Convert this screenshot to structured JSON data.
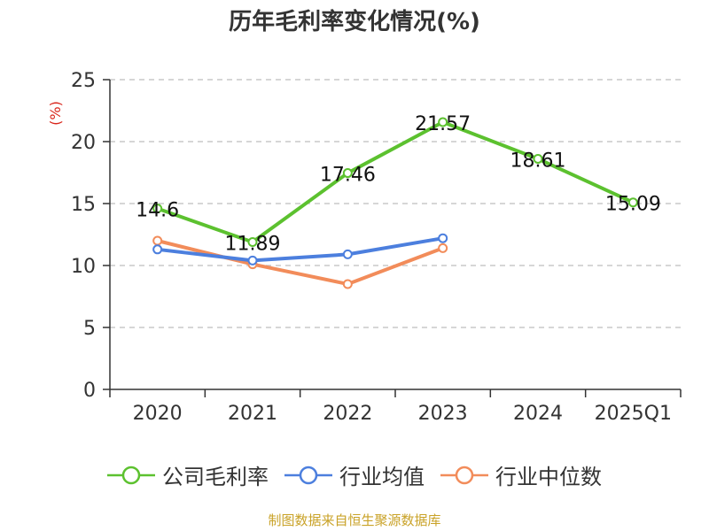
{
  "chart_data": {
    "type": "line",
    "title": "历年毛利率变化情况(%)",
    "ylabel": "(%)",
    "xlabel": "",
    "categories": [
      "2020",
      "2021",
      "2022",
      "2023",
      "2024",
      "2025Q1"
    ],
    "yticks": [
      "0",
      "5",
      "10",
      "15",
      "20",
      "25"
    ],
    "ylim": [
      0,
      25
    ],
    "grid": true,
    "legend_position": "bottom",
    "series": [
      {
        "name": "公司毛利率",
        "color": "#5cc12f",
        "values": [
          14.6,
          11.89,
          17.46,
          21.57,
          18.61,
          15.09
        ],
        "labels": [
          "14.6",
          "11.89",
          "17.46",
          "21.57",
          "18.61",
          "15.09"
        ]
      },
      {
        "name": "行业均值",
        "color": "#4c7fde",
        "values": [
          11.3,
          10.4,
          10.9,
          12.2,
          null,
          null
        ]
      },
      {
        "name": "行业中位数",
        "color": "#f28c5a",
        "values": [
          12.0,
          10.1,
          8.5,
          11.4,
          null,
          null
        ]
      }
    ],
    "source": "制图数据来自恒生聚源数据库"
  }
}
